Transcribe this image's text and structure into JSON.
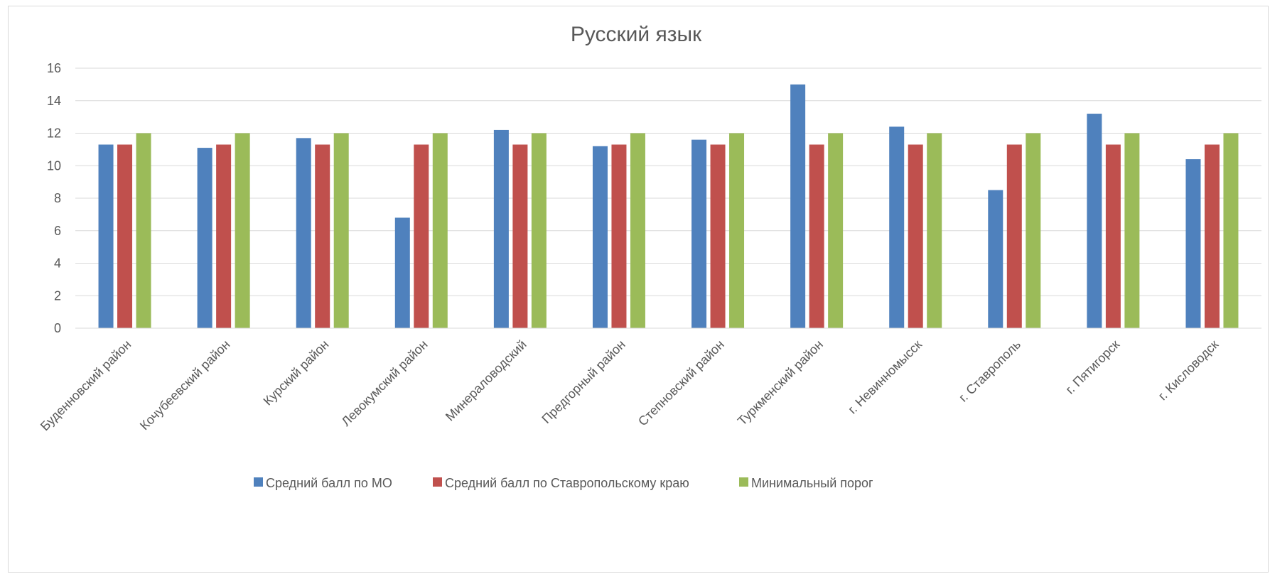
{
  "chart_data": {
    "type": "bar",
    "title": "Русский язык",
    "xlabel": "",
    "ylabel": "",
    "ylim": [
      0,
      16
    ],
    "yticks": [
      0,
      2,
      4,
      6,
      8,
      10,
      12,
      14,
      16
    ],
    "grid": true,
    "legend_position": "bottom",
    "categories": [
      "Буденновский район",
      "Кочубеевский район",
      "Курский район",
      "Левокумский район",
      "Минераловодский",
      "Предгорный район",
      "Степновский район",
      "Туркменский район",
      "г. Невинномысск",
      "г. Ставрополь",
      "г. Пятигорск",
      "г. Кисловодск"
    ],
    "series": [
      {
        "name": "Средний балл по МО",
        "color": "#4f81bd",
        "values": [
          11.3,
          11.1,
          11.7,
          6.8,
          12.2,
          11.2,
          11.6,
          15.0,
          12.4,
          8.5,
          13.2,
          10.4
        ]
      },
      {
        "name": "Средний балл по Ставропольскому краю",
        "color": "#c0504d",
        "values": [
          11.3,
          11.3,
          11.3,
          11.3,
          11.3,
          11.3,
          11.3,
          11.3,
          11.3,
          11.3,
          11.3,
          11.3
        ]
      },
      {
        "name": "Минимальный порог",
        "color": "#9bbb59",
        "values": [
          12,
          12,
          12,
          12,
          12,
          12,
          12,
          12,
          12,
          12,
          12,
          12
        ]
      }
    ]
  }
}
